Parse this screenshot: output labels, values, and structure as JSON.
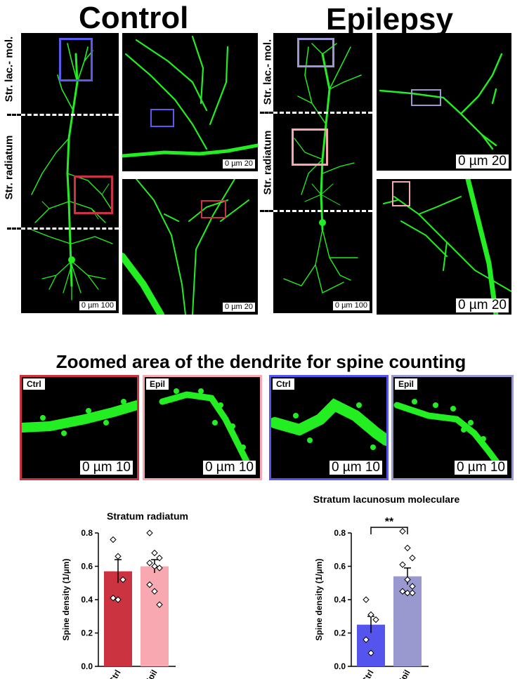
{
  "headers": {
    "control": "Control",
    "epilepsy": "Epilepsy"
  },
  "layer_labels": {
    "lac_mol": "Str. lac.- mol.",
    "radiatum": "Str. radiatum"
  },
  "scale_labels": {
    "s100": "0 µm 100",
    "s20": "0 µm 20",
    "s20_big": "0 µm 20",
    "s10": "0 µm 10"
  },
  "zoom_section": {
    "title": "Zoomed area of the dendrite for spine counting",
    "tags": [
      "Ctrl",
      "Epil",
      "Ctrl",
      "Epil"
    ]
  },
  "colors": {
    "ctrl_radiatum": "#cc3340",
    "epil_radiatum": "#f7a8b0",
    "ctrl_lacmol": "#5555ee",
    "epil_lacmol": "#9999d0",
    "neuron": "#22ee22"
  },
  "chart_data": [
    {
      "type": "bar",
      "title": "Stratum radiatum",
      "ylabel": "Spine density (1/µm)",
      "categories": [
        "Ctrl",
        "Epil"
      ],
      "values": [
        0.57,
        0.6
      ],
      "errors": [
        0.07,
        0.04
      ],
      "points": [
        [
          0.76,
          0.66,
          0.52,
          0.41,
          0.4
        ],
        [
          0.8,
          0.68,
          0.65,
          0.62,
          0.6,
          0.59,
          0.49,
          0.45,
          0.37
        ]
      ],
      "ylim": [
        0.0,
        0.8
      ],
      "yticks": [
        "0.0",
        "0.2",
        "0.4",
        "0.6",
        "0.8"
      ],
      "colors": [
        "#cc3340",
        "#f7a8b0"
      ],
      "significance": ""
    },
    {
      "type": "bar",
      "title": "Stratum lacunosum moleculare",
      "ylabel": "Spine density (1/µm)",
      "categories": [
        "Ctrl",
        "Epil"
      ],
      "values": [
        0.25,
        0.54
      ],
      "errors": [
        0.05,
        0.05
      ],
      "points": [
        [
          0.4,
          0.31,
          0.28,
          0.16,
          0.08
        ],
        [
          0.81,
          0.71,
          0.65,
          0.61,
          0.52,
          0.48,
          0.45,
          0.44,
          0.44
        ]
      ],
      "ylim": [
        0.0,
        0.8
      ],
      "yticks": [
        "0.0",
        "0.2",
        "0.4",
        "0.6",
        "0.8"
      ],
      "colors": [
        "#5555ee",
        "#9999d0"
      ],
      "significance": "**"
    }
  ]
}
